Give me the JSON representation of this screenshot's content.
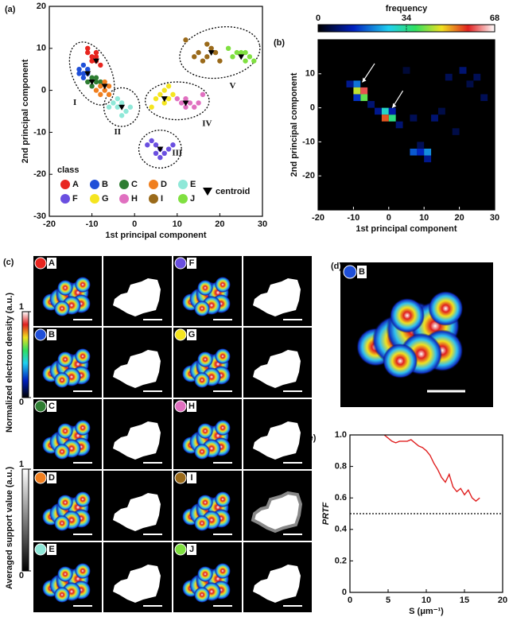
{
  "chart_data": [
    {
      "type": "scatter",
      "panel_label": "(a)",
      "x_label": "1st principal component",
      "y_label": "2nd principal component",
      "xlim": [
        -20,
        30
      ],
      "ylim": [
        -30,
        20
      ],
      "xticks": [
        -20,
        -10,
        0,
        10,
        20,
        30
      ],
      "yticks": [
        -30,
        -20,
        -10,
        0,
        10,
        20
      ],
      "legend_title": "class",
      "series": [
        {
          "name": "A",
          "color": "#e8251f",
          "x": [
            -11,
            -10,
            -9,
            -9,
            -10,
            -8,
            -11,
            -9
          ],
          "values": [
            9,
            8,
            9,
            7,
            7,
            6,
            10,
            8
          ]
        },
        {
          "name": "B",
          "color": "#1f4fd8",
          "x": [
            -12,
            -13,
            -11,
            -12,
            -13,
            -11,
            -12
          ],
          "values": [
            6,
            5,
            4,
            3,
            4,
            5,
            4
          ]
        },
        {
          "name": "C",
          "color": "#2e7d32",
          "x": [
            -10,
            -9,
            -11,
            -10,
            -9,
            -8
          ],
          "values": [
            3,
            2,
            2,
            1,
            3,
            2
          ]
        },
        {
          "name": "D",
          "color": "#f07f1f",
          "x": [
            -8,
            -7,
            -6,
            -8,
            -7,
            -6,
            -9
          ],
          "values": [
            1,
            0,
            1,
            -1,
            2,
            -1,
            0
          ]
        },
        {
          "name": "E",
          "color": "#8fe8d8",
          "x": [
            -3,
            -4,
            -2,
            -5,
            -1,
            -3,
            -4,
            -6
          ],
          "values": [
            -3,
            -4,
            -5,
            -3,
            -4,
            -6,
            -2,
            -4
          ]
        },
        {
          "name": "F",
          "color": "#6a4fe0",
          "x": [
            5,
            6,
            7,
            4,
            8,
            6,
            5,
            3,
            9
          ],
          "values": [
            -13,
            -14,
            -15,
            -12,
            -14,
            -16,
            -15,
            -13,
            -13
          ]
        },
        {
          "name": "G",
          "color": "#f5e51f",
          "x": [
            6,
            7,
            8,
            5,
            9,
            7,
            4,
            8
          ],
          "values": [
            -1,
            -3,
            -2,
            -2,
            -1,
            0,
            -4,
            1
          ]
        },
        {
          "name": "H",
          "color": "#e070c0",
          "x": [
            11,
            12,
            13,
            14,
            10,
            12,
            15,
            16
          ],
          "values": [
            -3,
            -2,
            -3,
            -4,
            -2,
            -4,
            -3,
            -1
          ]
        },
        {
          "name": "I",
          "color": "#9a6a1a",
          "x": [
            15,
            17,
            18,
            16,
            19,
            17,
            14,
            20,
            12
          ],
          "values": [
            9,
            8,
            10,
            7,
            9,
            11,
            8,
            7,
            12
          ]
        },
        {
          "name": "J",
          "color": "#80e040",
          "x": [
            23,
            25,
            26,
            27,
            24,
            28,
            22,
            26
          ],
          "values": [
            8,
            9,
            7,
            8,
            9,
            7,
            10,
            9
          ]
        }
      ],
      "centroids": {
        "name": "centroid",
        "x": [
          -9,
          -11,
          -10,
          -7,
          -3,
          6,
          7,
          12,
          18,
          25
        ],
        "values": [
          7,
          4,
          2,
          1,
          -4,
          -14,
          -2,
          -3,
          9,
          8
        ]
      },
      "clusters": [
        "I",
        "II",
        "III",
        "IV",
        "V"
      ]
    },
    {
      "type": "heatmap",
      "panel_label": "(b)",
      "x_label": "1st principal component",
      "y_label": "2nd principal component",
      "colorbar_label": "frequency",
      "colorbar_ticks": [
        0,
        34,
        68
      ],
      "clim": [
        0,
        68
      ],
      "xlim": [
        -20,
        30
      ],
      "ylim": [
        -30,
        20
      ],
      "xticks": [
        -20,
        -10,
        0,
        10,
        20,
        30
      ],
      "yticks": [
        -20,
        -10,
        0,
        10
      ],
      "x": [
        -9,
        -9,
        -7,
        -7,
        -9,
        -11,
        -5,
        -3,
        -1,
        -1,
        1,
        1,
        3,
        7,
        9,
        11,
        11,
        9,
        7,
        13,
        17,
        21,
        25,
        23,
        5,
        15,
        27,
        19
      ],
      "y": [
        7,
        5,
        5,
        3,
        3,
        7,
        1,
        -1,
        -1,
        -3,
        -3,
        -1,
        -5,
        -13,
        -13,
        -13,
        -15,
        -11,
        -3,
        -3,
        9,
        11,
        9,
        7,
        11,
        -1,
        3,
        -7
      ],
      "values": [
        20,
        45,
        60,
        40,
        15,
        10,
        8,
        10,
        30,
        55,
        35,
        12,
        8,
        18,
        14,
        22,
        10,
        6,
        6,
        8,
        6,
        8,
        6,
        5,
        4,
        5,
        6,
        5
      ]
    },
    {
      "type": "line",
      "panel_label": "(e)",
      "x_label": "S (μm⁻¹)",
      "y_label": "PRTF",
      "color": "#e02020",
      "xlim": [
        0,
        20
      ],
      "ylim": [
        0,
        1
      ],
      "xticks": [
        0,
        5,
        10,
        15,
        20
      ],
      "yticks": [
        0,
        0.2,
        0.4,
        0.6,
        0.8,
        {
          "value": 1,
          "label": "1.0"
        }
      ],
      "threshold": 0.5,
      "x": [
        4.5,
        5,
        5.5,
        6,
        6.5,
        7,
        7.5,
        8,
        8.5,
        9,
        9.5,
        10,
        10.5,
        11,
        11.5,
        12,
        12.5,
        13,
        13.5,
        14,
        14.5,
        15,
        15.5,
        16,
        16.5,
        17
      ],
      "values": [
        1.0,
        0.98,
        0.96,
        0.95,
        0.96,
        0.96,
        0.96,
        0.97,
        0.95,
        0.93,
        0.92,
        0.9,
        0.87,
        0.82,
        0.78,
        0.73,
        0.7,
        0.75,
        0.67,
        0.64,
        0.66,
        0.62,
        0.65,
        0.6,
        0.58,
        0.6
      ]
    }
  ],
  "panel_c": {
    "panel_label": "(c)",
    "density_colorbar": {
      "label": "Normalized electron density (a.u.)",
      "ticks": [
        0,
        1
      ]
    },
    "support_colorbar": {
      "label": "Averaged support value (a.u.)",
      "ticks": [
        0,
        1
      ]
    }
  },
  "panel_d": {
    "panel_label": "(d)"
  }
}
